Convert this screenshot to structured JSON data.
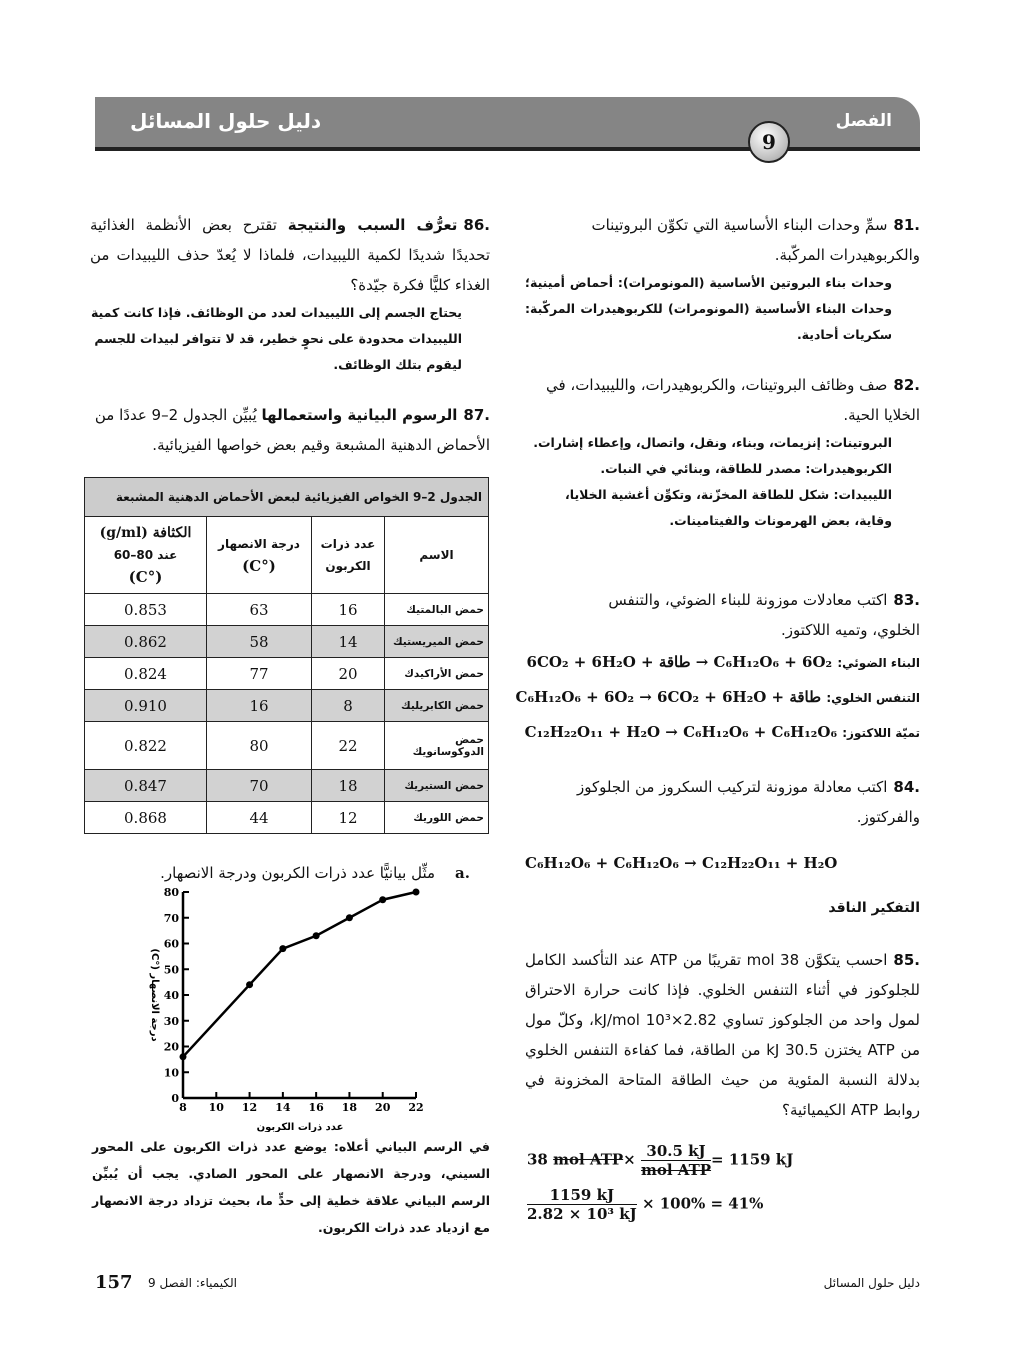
{
  "header": {
    "title": "دليل حلول المسائل",
    "chapter_label": "الفصل",
    "chapter_number": "9"
  },
  "q81": {
    "number": "81.",
    "text": "سمِّ وحدات البناء الأساسية التي تكوِّن البروتينات والكربوهيدرات المركّبة.",
    "answer": "وحدات بناء البروتين الأساسية (المونومرات): أحماض أمينية؛ وحدات البناء الأساسية (المونومرات) للكربوهيدرات المركّبة: سكريات أحادية."
  },
  "q82": {
    "number": "82.",
    "text": "صف وظائف البروتينات، والكربوهيدرات، والليبيدات، في الخلايا الحية.",
    "answers": [
      "البروتينات: إنزيمات، وبناء، ونقل، واتصال، وإعطاء إشارات.",
      "الكربوهيدرات: مصدر للطاقة، وبنائي في النبات.",
      "الليبيدات: شكل للطاقة المخزّنة، وتكوِّن أغشية الخلايا، وقاية، بعض الهرمونات والفيتامينات."
    ]
  },
  "q83": {
    "number": "83.",
    "text": "اكتب معادلات موزونة للبناء الضوئي، والتنفس الخلوي، وتميه اللاكتوز.",
    "equations": [
      {
        "label": "البناء الضوئي:",
        "formula": "6CO₂ + 6H₂O + طاقة → C₆H₁₂O₆ + 6O₂"
      },
      {
        "label": "التنفس الخلوي:",
        "formula": "C₆H₁₂O₆ + 6O₂ → 6CO₂ + 6H₂O + طاقة"
      },
      {
        "label": "تميّة اللاكتوز:",
        "formula": "C₁₂H₂₂O₁₁ + H₂O → C₆H₁₂O₆ + C₆H₁₂O₆"
      }
    ]
  },
  "q84": {
    "number": "84.",
    "text": "اكتب معادلة موزونة لتركيب السكروز من الجلوكوز والفركتوز.",
    "equation": "C₆H₁₂O₆ + C₆H₁₂O₆ → C₁₂H₂₂O₁₁ + H₂O"
  },
  "critical_heading": "التفكير الناقد",
  "q85": {
    "number": "85.",
    "text": "احسب يتكوَّن 38 mol تقريبًا من ATP عند التأكسد الكامل للجلوكوز في أثناء التنفس الخلوي. فإذا كانت حرارة الاحتراق لمول واحد من الجلوكوز تساوي 2.82×10³ kJ/mol، وكلّ مول من ATP يختزن 30.5 kJ من الطاقة، فما كفاءة التنفس الخلوي بدلالة النسبة المئوية من حيث الطاقة المتاحة المخزونة في روابط ATP الكيميائية؟",
    "calc1": {
      "lhs": "38",
      "unit_struck": "mol ATP",
      "times": "×",
      "num": "30.5 kJ",
      "den": "mol ATP",
      "result": "= 1159 kJ"
    },
    "calc2": {
      "num": "1159 kJ",
      "den": "2.82 × 10³ kJ",
      "rest": "× 100% = 41%"
    }
  },
  "q86": {
    "number": "86.",
    "keyword": "تعرُّف السبب والنتيجة",
    "text": "تقترح بعض الأنظمة الغذائية تحديدًا شديدًا لكمية الليبيدات، فلماذا لا يُعدّ حذف الليبيدات من الغذاء كليًّا فكرة جيّدة؟",
    "answer": "يحتاج الجسم إلى الليبيدات لعدد من الوظائف. فإذا كانت كمية الليبيدات محدودة على نحوٍ خطير، قد لا تتوافر لبيدات للجسم ليقوم بتلك الوظائف."
  },
  "q87": {
    "number": "87.",
    "keyword": "الرسوم البيانية واستعمالها",
    "text": "يُبيِّن الجدول 2–9 عددًا من الأحماض الدهنية المشبعة وقيم بعض خواصها الفيزيائية."
  },
  "table": {
    "title": "الجدول 2–9 الخواص الفيزيائية لبعض الأحماض الدهنية المشبعة",
    "headers": {
      "name": "الاسم",
      "carbons": "عدد ذرات الكربون",
      "melting": "درجة الانصهار",
      "melting_unit": "(°C)",
      "density": "الكثافة (g/ml)",
      "density2": "عند 80–60",
      "density_unit": "(°C)"
    },
    "rows": [
      {
        "name": "حمض البالمتيك",
        "carbons": "16",
        "melting": "63",
        "density": "0.853"
      },
      {
        "name": "حمض الميريستيك",
        "carbons": "14",
        "melting": "58",
        "density": "0.862"
      },
      {
        "name": "حمض الأراكيدك",
        "carbons": "20",
        "melting": "77",
        "density": "0.824"
      },
      {
        "name": "حمض الكابريليك",
        "carbons": "8",
        "melting": "16",
        "density": "0.910"
      },
      {
        "name": "حمض الدوكوسانويك",
        "carbons": "22",
        "melting": "80",
        "density": "0.822"
      },
      {
        "name": "حمض الستيريك",
        "carbons": "18",
        "melting": "70",
        "density": "0.847"
      },
      {
        "name": "حمض اللوريك",
        "carbons": "12",
        "melting": "44",
        "density": "0.868"
      }
    ]
  },
  "part_a": {
    "label": "a.",
    "text": "مثِّل بيانيًّا عدد ذرات الكربون ودرجة الانصهار.",
    "answer": "في الرسم البياني أعلاه: يوضع عدد ذرات الكربون على المحور السيني، ودرجة الانصهار على المحور الصادي. يجب أن يُبيِّن الرسم البياني علاقة خطية إلى حدٍّ ما، بحيث تزداد درجة الانصهار مع ازدياد عدد ذرات الكربون."
  },
  "chart_data": {
    "type": "line",
    "xlabel": "عدد ذرات الكربون",
    "ylabel": "درجة الانصهار (°C)",
    "x": [
      8,
      12,
      14,
      16,
      18,
      20,
      22
    ],
    "y": [
      16,
      44,
      58,
      63,
      70,
      77,
      80
    ],
    "xlim": [
      8,
      22
    ],
    "ylim": [
      0,
      80
    ],
    "xticks": [
      "8",
      "10",
      "12",
      "14",
      "16",
      "18",
      "20",
      "22"
    ],
    "yticks": [
      "0",
      "10",
      "20",
      "30",
      "40",
      "50",
      "60",
      "70",
      "80"
    ],
    "grid": false,
    "markers": true,
    "color": "#000000"
  },
  "footer": {
    "page": "157",
    "book": "الكيمياء: الفصل 9",
    "right": "دليل حلول المسائل"
  }
}
